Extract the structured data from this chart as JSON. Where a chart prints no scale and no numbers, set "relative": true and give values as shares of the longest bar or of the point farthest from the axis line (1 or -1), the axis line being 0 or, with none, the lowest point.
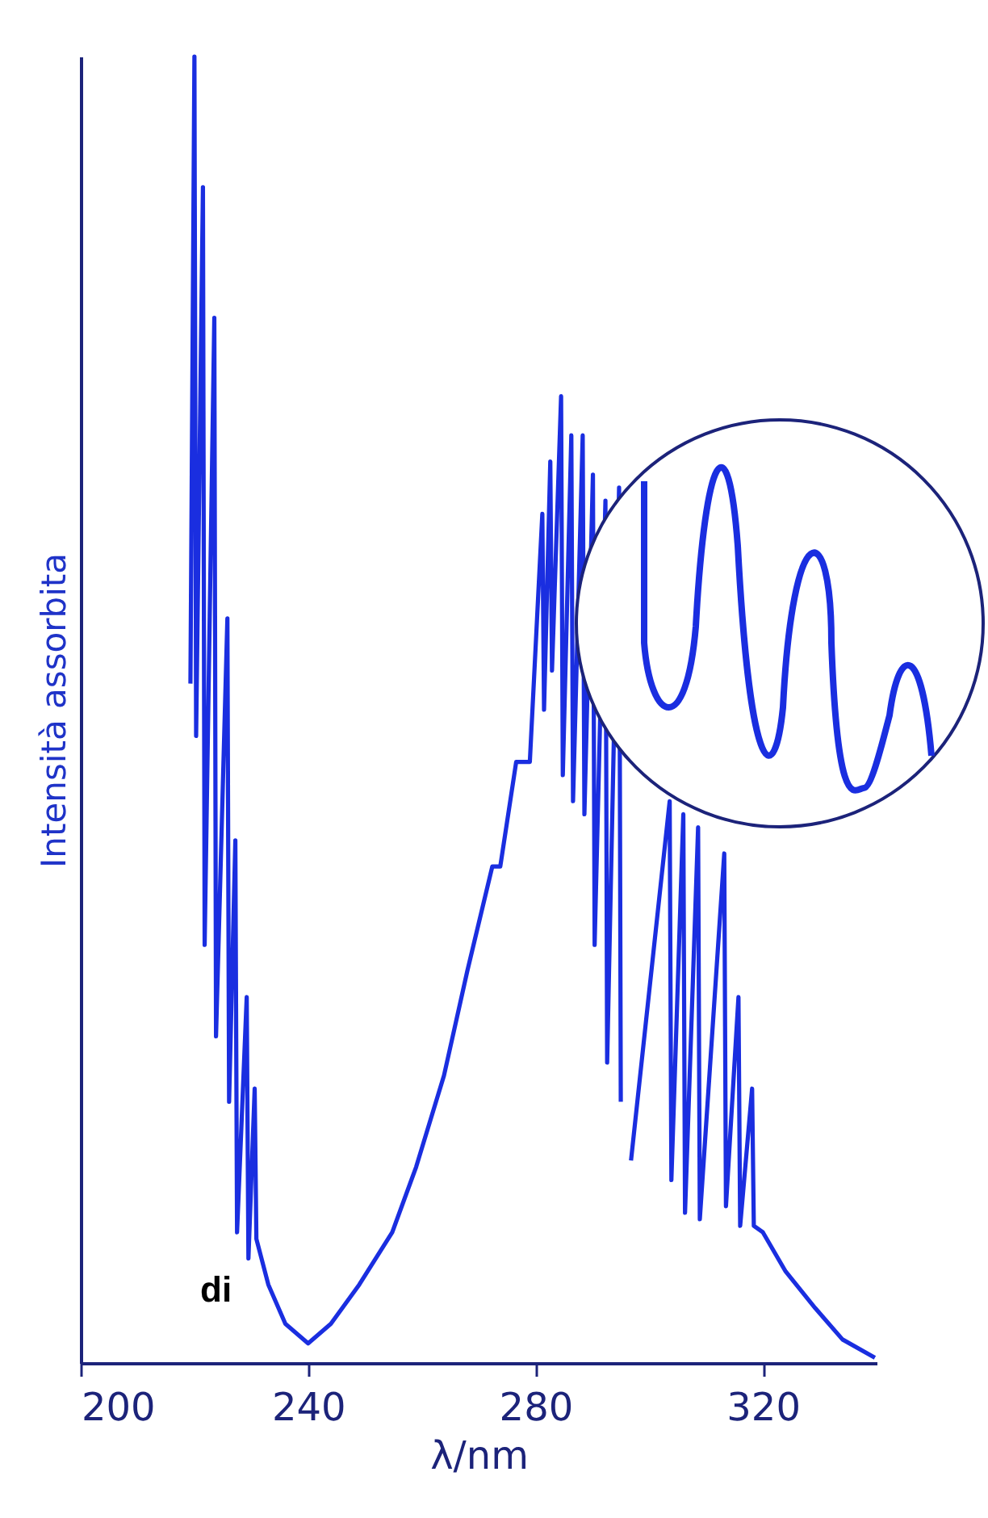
{
  "chart_data": {
    "type": "line",
    "relative": true,
    "xlabel": "λ/nm",
    "ylabel": "Intensità assorbita",
    "xlim": [
      200,
      340
    ],
    "xticks": [
      200,
      240,
      280,
      320
    ],
    "tick_labels": "x",
    "grid": false,
    "marker": "none",
    "line_style": "solid",
    "annotations": [
      "di"
    ],
    "series": [
      {
        "color": "#1a2ee0",
        "x": [
          219.3,
          220,
          220.3,
          221.5,
          221.8,
          223.5,
          223.8,
          225.8,
          226.1,
          227.2,
          227.5,
          229.2,
          229.5,
          230.6,
          230.9,
          233,
          236,
          240,
          244,
          249,
          254.8,
          259,
          263.9,
          268,
          272.4,
          273.8,
          276.6,
          279,
          281.2,
          281.5,
          282.6,
          282.9,
          284.5,
          284.8,
          286.3,
          286.6,
          288.3,
          288.6,
          290.1,
          290.4,
          292.3,
          292.6,
          294.7,
          295,
          296.5,
          296.8,
          303.6,
          303.9,
          306,
          306.3,
          308.6,
          308.9,
          313.2,
          313.5,
          315.7,
          316,
          318.1,
          318.4,
          320,
          324,
          329.2,
          334,
          339.7
        ],
        "values": [
          0.52,
          1.0,
          0.48,
          0.9,
          0.32,
          0.8,
          0.25,
          0.57,
          0.2,
          0.4,
          0.1,
          0.28,
          0.08,
          0.21,
          0.095,
          0.06,
          0.03,
          0.015,
          0.03,
          0.06,
          0.1,
          0.15,
          0.22,
          0.3,
          0.38,
          0.38,
          0.46,
          0.46,
          0.65,
          0.5,
          0.69,
          0.53,
          0.74,
          0.45,
          0.71,
          0.43,
          0.71,
          0.42,
          0.68,
          0.32,
          0.66,
          0.23,
          0.67,
          0.2,
          null,
          0.155,
          0.43,
          0.14,
          0.42,
          0.115,
          0.41,
          0.11,
          0.39,
          0.12,
          0.28,
          0.105,
          0.21,
          0.105,
          0.1,
          0.07,
          0.042,
          0.018,
          0.004
        ]
      }
    ]
  }
}
